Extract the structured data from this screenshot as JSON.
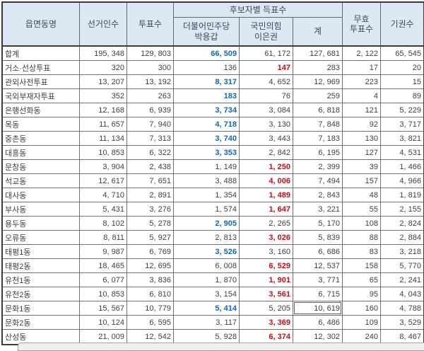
{
  "colors": {
    "header_bg": "#dce9f4",
    "header_text": "#3c4a59",
    "body_text": "#3f3f3f",
    "win_blue": "#1767ae",
    "win_red": "#bf1016",
    "grid_line": "#6f6f6f",
    "outer_border": "#3b3b3b"
  },
  "table": {
    "headers": {
      "district": "읍면동명",
      "electors": "선거인수",
      "votes": "투표수",
      "candidate_group": "후보자별 득표수",
      "candidate1_party": "더불어민주당",
      "candidate1_name": "박용갑",
      "candidate2_party": "국민의힘",
      "candidate2_name": "이은권",
      "sum": "계",
      "invalid_line1": "무효",
      "invalid_line2": "투표수",
      "abstentions": "기권수"
    },
    "rows": [
      {
        "name": "합계",
        "electors": "195, 348",
        "votes": "129, 803",
        "c1": "66, 509",
        "c2": "61, 172",
        "total": "127, 681",
        "invalid": "2, 122",
        "abstain": "65, 545",
        "win": "c1"
      },
      {
        "name": "거소·선상투표",
        "electors": "320",
        "votes": "300",
        "c1": "136",
        "c2": "147",
        "total": "283",
        "invalid": "17",
        "abstain": "20",
        "win": "c2"
      },
      {
        "name": "관외사전투표",
        "electors": "13, 207",
        "votes": "13, 192",
        "c1": "8, 317",
        "c2": "4, 652",
        "total": "12, 969",
        "invalid": "223",
        "abstain": "15",
        "win": "c1"
      },
      {
        "name": "국외부재자투표",
        "electors": "352",
        "votes": "263",
        "c1": "183",
        "c2": "76",
        "total": "259",
        "invalid": "4",
        "abstain": "89",
        "win": "c1"
      },
      {
        "name": "은행선화동",
        "electors": "12, 168",
        "votes": "6, 939",
        "c1": "3, 734",
        "c2": "3, 084",
        "total": "6, 818",
        "invalid": "121",
        "abstain": "5, 229",
        "win": "c1"
      },
      {
        "name": "목동",
        "electors": "11, 657",
        "votes": "7, 940",
        "c1": "4, 718",
        "c2": "3, 130",
        "total": "7, 848",
        "invalid": "92",
        "abstain": "3, 717",
        "win": "c1"
      },
      {
        "name": "중촌동",
        "electors": "11, 134",
        "votes": "7, 313",
        "c1": "3, 740",
        "c2": "3, 443",
        "total": "7, 183",
        "invalid": "130",
        "abstain": "3, 821",
        "win": "c1"
      },
      {
        "name": "대흥동",
        "electors": "10, 853",
        "votes": "6, 322",
        "c1": "3, 353",
        "c2": "2, 842",
        "total": "6, 195",
        "invalid": "127",
        "abstain": "4, 531",
        "win": "c1"
      },
      {
        "name": "문창동",
        "electors": "3, 904",
        "votes": "2, 438",
        "c1": "1, 149",
        "c2": "1, 250",
        "total": "2, 399",
        "invalid": "39",
        "abstain": "1, 466",
        "win": "c2"
      },
      {
        "name": "석교동",
        "electors": "12, 617",
        "votes": "7, 651",
        "c1": "3, 488",
        "c2": "4, 006",
        "total": "7, 494",
        "invalid": "157",
        "abstain": "4, 966",
        "win": "c2"
      },
      {
        "name": "대사동",
        "electors": "4, 710",
        "votes": "2, 891",
        "c1": "1, 354",
        "c2": "1, 489",
        "total": "2, 843",
        "invalid": "48",
        "abstain": "1, 819",
        "win": "c2"
      },
      {
        "name": "부사동",
        "electors": "5, 431",
        "votes": "3, 276",
        "c1": "1, 574",
        "c2": "1, 647",
        "total": "3, 221",
        "invalid": "55",
        "abstain": "2, 155",
        "win": "c2"
      },
      {
        "name": "용두동",
        "electors": "8, 102",
        "votes": "5, 278",
        "c1": "2, 905",
        "c2": "2, 265",
        "total": "5, 170",
        "invalid": "108",
        "abstain": "2, 824",
        "win": "c1"
      },
      {
        "name": "오류동",
        "electors": "8, 811",
        "votes": "5, 927",
        "c1": "2, 813",
        "c2": "3, 026",
        "total": "5, 839",
        "invalid": "88",
        "abstain": "2, 884",
        "win": "c2"
      },
      {
        "name": "태평1동",
        "electors": "9, 987",
        "votes": "6, 769",
        "c1": "3, 526",
        "c2": "3, 160",
        "total": "6, 686",
        "invalid": "83",
        "abstain": "3, 218",
        "win": "c1"
      },
      {
        "name": "태평2동",
        "electors": "18, 465",
        "votes": "12, 695",
        "c1": "6, 008",
        "c2": "6, 529",
        "total": "12, 537",
        "invalid": "158",
        "abstain": "5, 770",
        "win": "c2"
      },
      {
        "name": "유천1동",
        "electors": "6, 077",
        "votes": "3, 836",
        "c1": "1, 870",
        "c2": "1, 901",
        "total": "3, 771",
        "invalid": "65",
        "abstain": "2, 241",
        "win": "c2"
      },
      {
        "name": "유천2동",
        "electors": "10, 853",
        "votes": "6, 810",
        "c1": "3, 154",
        "c2": "3, 561",
        "total": "6, 715",
        "invalid": "95",
        "abstain": "4, 043",
        "win": "c2"
      },
      {
        "name": "문화1동",
        "electors": "15, 567",
        "votes": "10, 779",
        "c1": "5, 414",
        "c2": "5, 205",
        "total": "10, 619",
        "invalid": "160",
        "abstain": "4, 788",
        "win": "c1"
      },
      {
        "name": "문화2동",
        "electors": "10, 124",
        "votes": "6, 595",
        "c1": "3, 117",
        "c2": "3, 369",
        "total": "6, 486",
        "invalid": "109",
        "abstain": "3, 529",
        "win": "c2"
      },
      {
        "name": "산성동",
        "electors": "21, 009",
        "votes": "12, 542",
        "c1": "5, 928",
        "c2": "6, 374",
        "total": "12, 302",
        "invalid": "240",
        "abstain": "8, 467",
        "win": "c2"
      }
    ]
  },
  "selection": {
    "row_index": 18,
    "field": "total",
    "icon": "cell-cursor-icon"
  }
}
